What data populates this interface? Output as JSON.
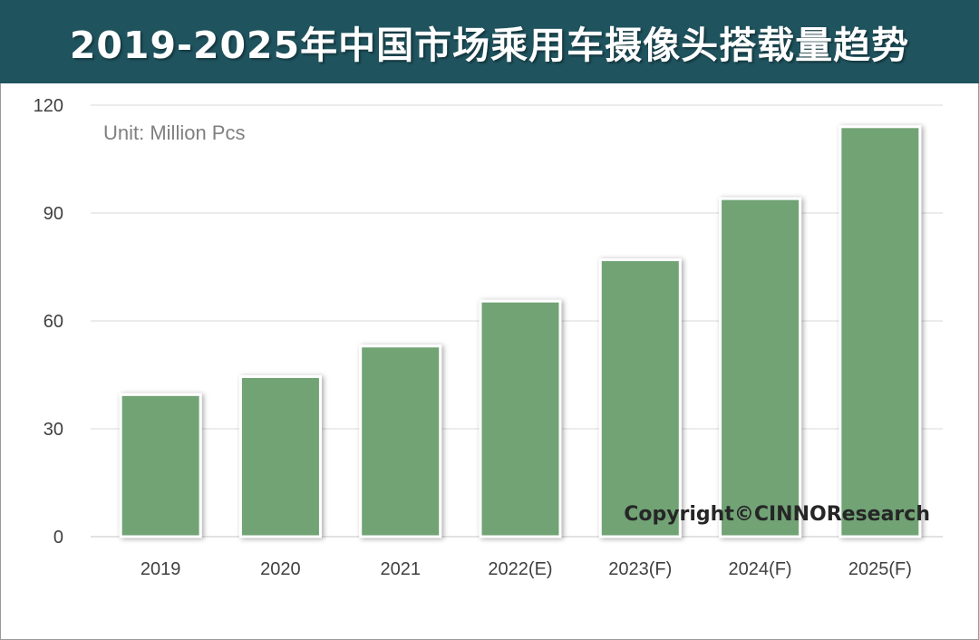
{
  "colors": {
    "title_bg": "#1f535e",
    "bar_fill": "#71a374",
    "grid": "#d9d9d9",
    "tick_text": "#404040",
    "unit_text": "#808080",
    "copyright_text": "#262626"
  },
  "chart_data": {
    "type": "bar",
    "title": "2019-2025年中国市场乘用车摄像头搭载量趋势",
    "unit_label": "Unit: Million Pcs",
    "copyright": "Copyright©CINNOResearch",
    "categories": [
      "2019",
      "2020",
      "2021",
      "2022(E)",
      "2023(F)",
      "2024(F)",
      "2025(F)"
    ],
    "values": [
      39.5,
      44.5,
      53,
      65.5,
      77,
      94,
      114
    ],
    "ylim": [
      0,
      120
    ],
    "yticks": [
      0,
      30,
      60,
      90,
      120
    ],
    "grid": true,
    "xlabel": "",
    "ylabel": ""
  }
}
